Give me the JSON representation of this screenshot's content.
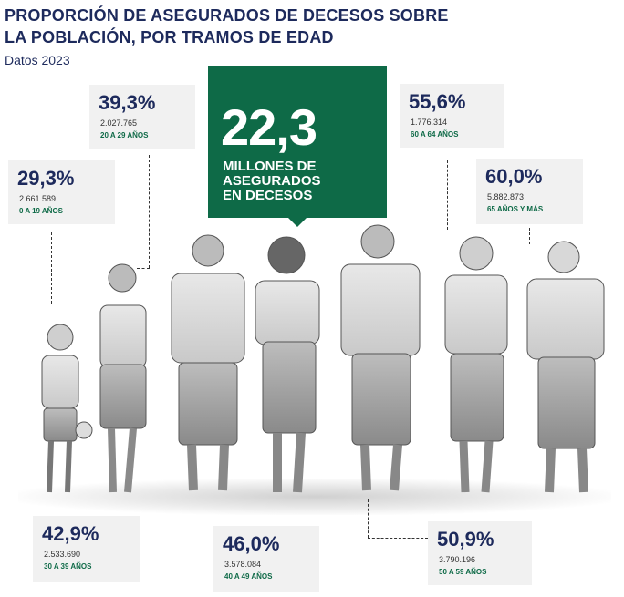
{
  "title_line1": "PROPORCIÓN DE ASEGURADOS DE DECESOS SOBRE",
  "title_line2": "LA POBLACIÓN, POR TRAMOS DE EDAD",
  "subtitle": "Datos 2023",
  "hero": {
    "value": "22,3",
    "line1": "MILLONES DE",
    "line2": "ASEGURADOS",
    "line3": "EN DECESOS",
    "color": "#0e6a47"
  },
  "groups": [
    {
      "pct": "29,3%",
      "count": "2.661.589",
      "age": "0 A 19 AÑOS"
    },
    {
      "pct": "39,3%",
      "count": "2.027.765",
      "age": "20 A 29 AÑOS"
    },
    {
      "pct": "42,9%",
      "count": "2.533.690",
      "age": "30 A 39 AÑOS"
    },
    {
      "pct": "46,0%",
      "count": "3.578.084",
      "age": "40 A 49 AÑOS"
    },
    {
      "pct": "50,9%",
      "count": "3.790.196",
      "age": "50 A 59 AÑOS"
    },
    {
      "pct": "55,6%",
      "count": "1.776.314",
      "age": "60 A 64 AÑOS"
    },
    {
      "pct": "60,0%",
      "count": "5.882.873",
      "age": "65 AÑOS Y MÁS"
    }
  ],
  "colors": {
    "navy": "#1d2a5c",
    "green": "#0e6a47",
    "box_bg": "#f1f1f1"
  }
}
